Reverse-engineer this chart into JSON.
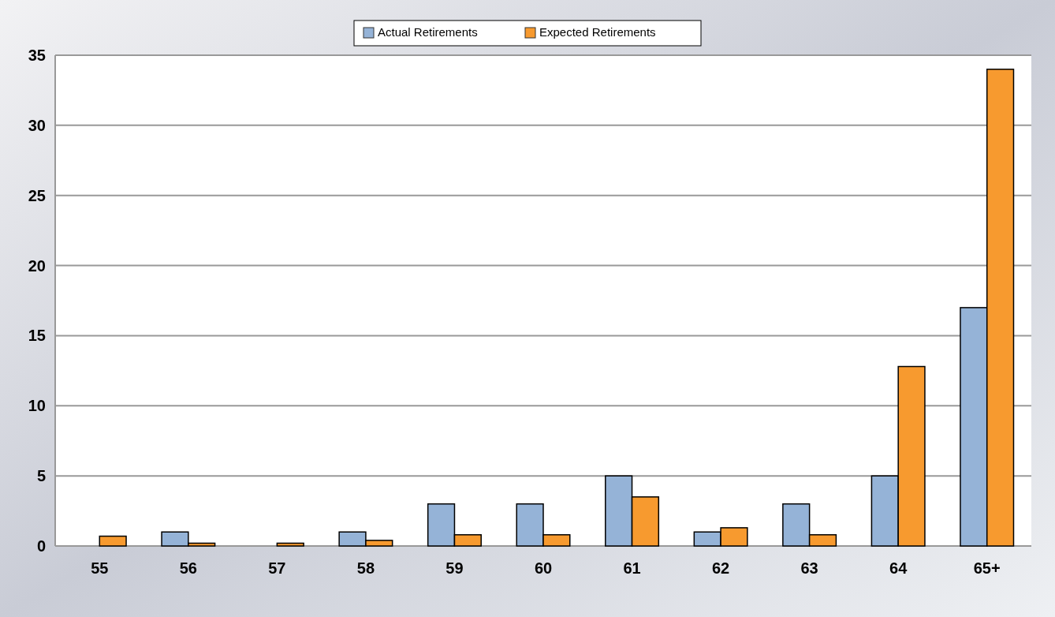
{
  "chart_data": {
    "type": "bar",
    "categories": [
      "55",
      "56",
      "57",
      "58",
      "59",
      "60",
      "61",
      "62",
      "63",
      "64",
      "65+"
    ],
    "series": [
      {
        "name": "Actual Retirements",
        "color": "#95b3d7",
        "values": [
          0,
          1,
          0,
          1,
          3,
          3,
          5,
          1,
          3,
          5,
          17
        ]
      },
      {
        "name": "Expected Retirements",
        "color": "#f79a2f",
        "values": [
          0.7,
          0.2,
          0.2,
          0.4,
          0.8,
          0.8,
          3.5,
          1.3,
          0.8,
          12.8,
          34
        ]
      }
    ],
    "ylim": [
      0,
      35
    ],
    "yticks": [
      0,
      5,
      10,
      15,
      20,
      25,
      30,
      35
    ],
    "grid": "y",
    "legend": "top"
  }
}
